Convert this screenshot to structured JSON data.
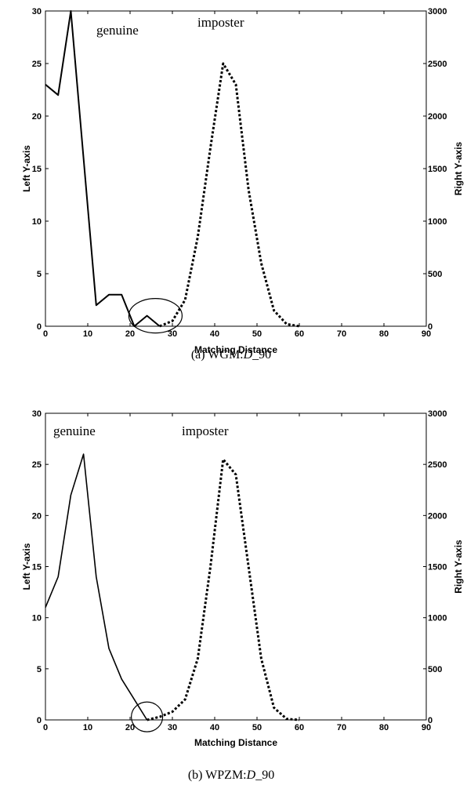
{
  "chart_data": [
    {
      "type": "line",
      "caption_prefix": "(a) WGM:",
      "caption_italic": "D",
      "caption_suffix": "_90",
      "xlabel": "Matching Distance",
      "ylabel_left": "Left Y-axis",
      "ylabel_right": "Right Y-axis",
      "xlim": [
        0,
        90
      ],
      "ylim_left": [
        0,
        30
      ],
      "ylim_right": [
        0,
        3000
      ],
      "xticks": [
        "0",
        "10",
        "20",
        "30",
        "40",
        "50",
        "60",
        "70",
        "80",
        "90"
      ],
      "yticks_left": [
        "0",
        "5",
        "10",
        "15",
        "20",
        "25",
        "30"
      ],
      "yticks_right": [
        "0",
        "500",
        "1000",
        "1500",
        "2000",
        "2500",
        "3000"
      ],
      "annotations": [
        {
          "text": "genuine"
        },
        {
          "text": "imposter"
        }
      ],
      "series": [
        {
          "axis": "left",
          "style": "solid",
          "x": [
            0,
            3,
            6,
            9,
            12,
            15,
            18,
            21,
            24,
            27
          ],
          "y": [
            23,
            22,
            30,
            16,
            2,
            3,
            3,
            0,
            1,
            0
          ]
        },
        {
          "axis": "right",
          "style": "dotted",
          "x": [
            27,
            30,
            33,
            36,
            39,
            42,
            45,
            48,
            51,
            54,
            57,
            60
          ],
          "y": [
            0,
            50,
            250,
            850,
            1700,
            2500,
            2300,
            1300,
            600,
            150,
            20,
            0
          ]
        }
      ],
      "circle_marker": {
        "x": 26,
        "y": 1
      }
    },
    {
      "type": "line",
      "caption_prefix": "(b) WPZM:",
      "caption_italic": "D",
      "caption_suffix": "_90",
      "xlabel": "Matching Distance",
      "ylabel_left": "Left Y-axis",
      "ylabel_right": "Right Y-axis",
      "xlim": [
        0,
        90
      ],
      "ylim_left": [
        0,
        30
      ],
      "ylim_right": [
        0,
        3000
      ],
      "xticks": [
        "0",
        "10",
        "20",
        "30",
        "40",
        "50",
        "60",
        "70",
        "80",
        "90"
      ],
      "yticks_left": [
        "0",
        "5",
        "10",
        "15",
        "20",
        "25",
        "30"
      ],
      "yticks_right": [
        "0",
        "500",
        "1000",
        "1500",
        "2000",
        "2500",
        "3000"
      ],
      "annotations": [
        {
          "text": "genuine"
        },
        {
          "text": "imposter"
        }
      ],
      "series": [
        {
          "axis": "left",
          "style": "solid",
          "x": [
            0,
            3,
            6,
            9,
            12,
            15,
            18,
            21,
            24
          ],
          "y": [
            11,
            14,
            22,
            26,
            14,
            7,
            4,
            2,
            0
          ]
        },
        {
          "axis": "right",
          "style": "dotted",
          "x": [
            24,
            27,
            30,
            33,
            36,
            39,
            42,
            45,
            48,
            51,
            54,
            57,
            60
          ],
          "y": [
            0,
            30,
            80,
            200,
            600,
            1500,
            2550,
            2400,
            1500,
            600,
            120,
            10,
            0
          ]
        }
      ],
      "circle_marker": {
        "x": 24,
        "y": 0.3
      }
    }
  ]
}
